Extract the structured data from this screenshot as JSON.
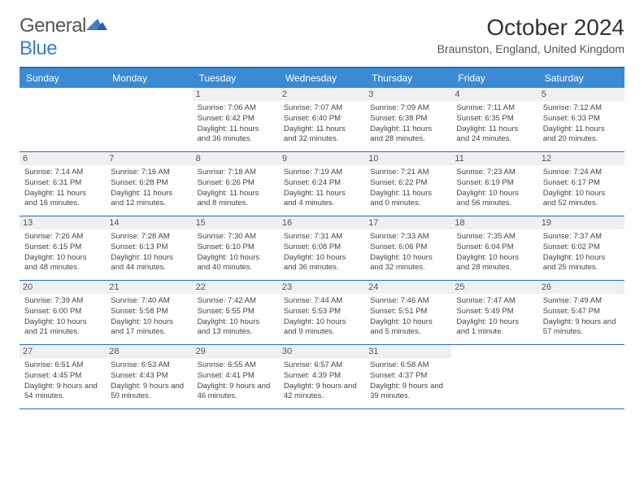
{
  "brand": {
    "part1": "General",
    "part2": "Blue"
  },
  "title": "October 2024",
  "location": "Braunston, England, United Kingdom",
  "colors": {
    "header_bg": "#3b8bd4",
    "border": "#2a6db8",
    "daynum_bg": "#eef0f2",
    "text": "#444",
    "title": "#333"
  },
  "dayNames": [
    "Sunday",
    "Monday",
    "Tuesday",
    "Wednesday",
    "Thursday",
    "Friday",
    "Saturday"
  ],
  "weeks": [
    [
      null,
      null,
      {
        "n": "1",
        "sr": "Sunrise: 7:06 AM",
        "ss": "Sunset: 6:42 PM",
        "dl": "Daylight: 11 hours and 36 minutes."
      },
      {
        "n": "2",
        "sr": "Sunrise: 7:07 AM",
        "ss": "Sunset: 6:40 PM",
        "dl": "Daylight: 11 hours and 32 minutes."
      },
      {
        "n": "3",
        "sr": "Sunrise: 7:09 AM",
        "ss": "Sunset: 6:38 PM",
        "dl": "Daylight: 11 hours and 28 minutes."
      },
      {
        "n": "4",
        "sr": "Sunrise: 7:11 AM",
        "ss": "Sunset: 6:35 PM",
        "dl": "Daylight: 11 hours and 24 minutes."
      },
      {
        "n": "5",
        "sr": "Sunrise: 7:12 AM",
        "ss": "Sunset: 6:33 PM",
        "dl": "Daylight: 11 hours and 20 minutes."
      }
    ],
    [
      {
        "n": "6",
        "sr": "Sunrise: 7:14 AM",
        "ss": "Sunset: 6:31 PM",
        "dl": "Daylight: 11 hours and 16 minutes."
      },
      {
        "n": "7",
        "sr": "Sunrise: 7:16 AM",
        "ss": "Sunset: 6:28 PM",
        "dl": "Daylight: 11 hours and 12 minutes."
      },
      {
        "n": "8",
        "sr": "Sunrise: 7:18 AM",
        "ss": "Sunset: 6:26 PM",
        "dl": "Daylight: 11 hours and 8 minutes."
      },
      {
        "n": "9",
        "sr": "Sunrise: 7:19 AM",
        "ss": "Sunset: 6:24 PM",
        "dl": "Daylight: 11 hours and 4 minutes."
      },
      {
        "n": "10",
        "sr": "Sunrise: 7:21 AM",
        "ss": "Sunset: 6:22 PM",
        "dl": "Daylight: 11 hours and 0 minutes."
      },
      {
        "n": "11",
        "sr": "Sunrise: 7:23 AM",
        "ss": "Sunset: 6:19 PM",
        "dl": "Daylight: 10 hours and 56 minutes."
      },
      {
        "n": "12",
        "sr": "Sunrise: 7:24 AM",
        "ss": "Sunset: 6:17 PM",
        "dl": "Daylight: 10 hours and 52 minutes."
      }
    ],
    [
      {
        "n": "13",
        "sr": "Sunrise: 7:26 AM",
        "ss": "Sunset: 6:15 PM",
        "dl": "Daylight: 10 hours and 48 minutes."
      },
      {
        "n": "14",
        "sr": "Sunrise: 7:28 AM",
        "ss": "Sunset: 6:13 PM",
        "dl": "Daylight: 10 hours and 44 minutes."
      },
      {
        "n": "15",
        "sr": "Sunrise: 7:30 AM",
        "ss": "Sunset: 6:10 PM",
        "dl": "Daylight: 10 hours and 40 minutes."
      },
      {
        "n": "16",
        "sr": "Sunrise: 7:31 AM",
        "ss": "Sunset: 6:08 PM",
        "dl": "Daylight: 10 hours and 36 minutes."
      },
      {
        "n": "17",
        "sr": "Sunrise: 7:33 AM",
        "ss": "Sunset: 6:06 PM",
        "dl": "Daylight: 10 hours and 32 minutes."
      },
      {
        "n": "18",
        "sr": "Sunrise: 7:35 AM",
        "ss": "Sunset: 6:04 PM",
        "dl": "Daylight: 10 hours and 28 minutes."
      },
      {
        "n": "19",
        "sr": "Sunrise: 7:37 AM",
        "ss": "Sunset: 6:02 PM",
        "dl": "Daylight: 10 hours and 25 minutes."
      }
    ],
    [
      {
        "n": "20",
        "sr": "Sunrise: 7:39 AM",
        "ss": "Sunset: 6:00 PM",
        "dl": "Daylight: 10 hours and 21 minutes."
      },
      {
        "n": "21",
        "sr": "Sunrise: 7:40 AM",
        "ss": "Sunset: 5:58 PM",
        "dl": "Daylight: 10 hours and 17 minutes."
      },
      {
        "n": "22",
        "sr": "Sunrise: 7:42 AM",
        "ss": "Sunset: 5:55 PM",
        "dl": "Daylight: 10 hours and 13 minutes."
      },
      {
        "n": "23",
        "sr": "Sunrise: 7:44 AM",
        "ss": "Sunset: 5:53 PM",
        "dl": "Daylight: 10 hours and 9 minutes."
      },
      {
        "n": "24",
        "sr": "Sunrise: 7:46 AM",
        "ss": "Sunset: 5:51 PM",
        "dl": "Daylight: 10 hours and 5 minutes."
      },
      {
        "n": "25",
        "sr": "Sunrise: 7:47 AM",
        "ss": "Sunset: 5:49 PM",
        "dl": "Daylight: 10 hours and 1 minute."
      },
      {
        "n": "26",
        "sr": "Sunrise: 7:49 AM",
        "ss": "Sunset: 5:47 PM",
        "dl": "Daylight: 9 hours and 57 minutes."
      }
    ],
    [
      {
        "n": "27",
        "sr": "Sunrise: 6:51 AM",
        "ss": "Sunset: 4:45 PM",
        "dl": "Daylight: 9 hours and 54 minutes."
      },
      {
        "n": "28",
        "sr": "Sunrise: 6:53 AM",
        "ss": "Sunset: 4:43 PM",
        "dl": "Daylight: 9 hours and 50 minutes."
      },
      {
        "n": "29",
        "sr": "Sunrise: 6:55 AM",
        "ss": "Sunset: 4:41 PM",
        "dl": "Daylight: 9 hours and 46 minutes."
      },
      {
        "n": "30",
        "sr": "Sunrise: 6:57 AM",
        "ss": "Sunset: 4:39 PM",
        "dl": "Daylight: 9 hours and 42 minutes."
      },
      {
        "n": "31",
        "sr": "Sunrise: 6:58 AM",
        "ss": "Sunset: 4:37 PM",
        "dl": "Daylight: 9 hours and 39 minutes."
      },
      null,
      null
    ]
  ]
}
